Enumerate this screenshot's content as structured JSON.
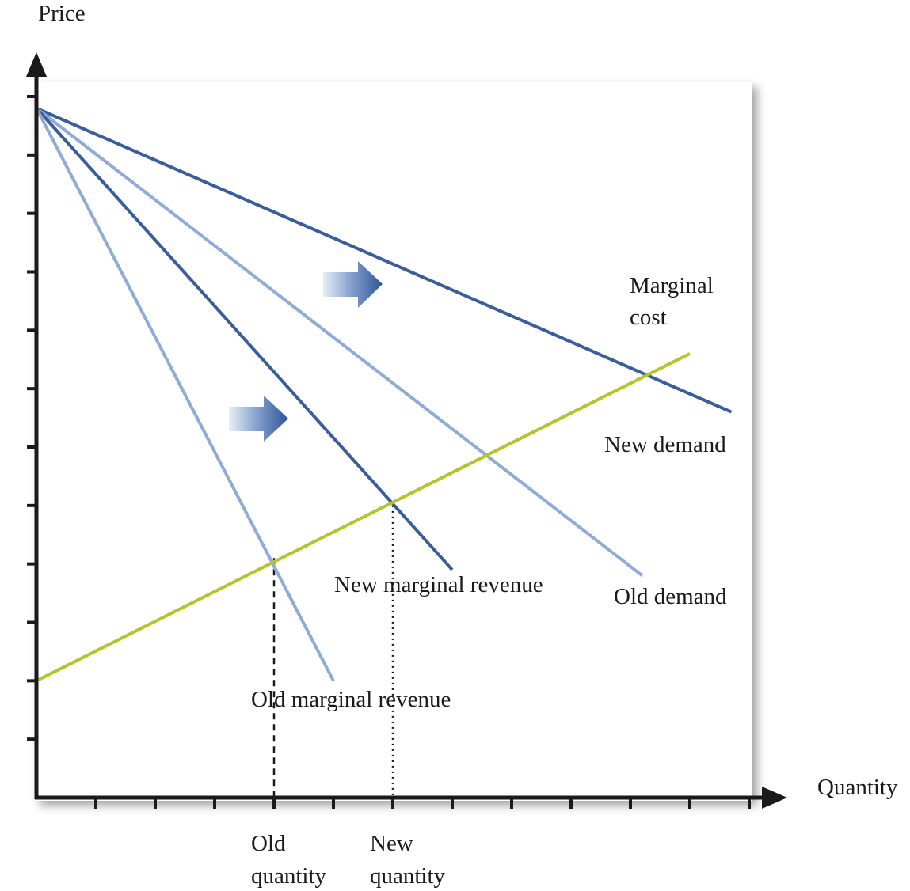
{
  "chart_data": {
    "type": "line",
    "title": "",
    "xlabel": "Quantity",
    "ylabel": "Price",
    "xlim": [
      0,
      12
    ],
    "ylim": [
      0,
      12
    ],
    "grid": false,
    "legend": "none",
    "series": [
      {
        "name": "New demand",
        "color": "#3a5e9b",
        "x": [
          0,
          11.7
        ],
        "y": [
          11.8,
          6.6
        ]
      },
      {
        "name": "Old demand",
        "color": "#8fabd6",
        "x": [
          0,
          10.2
        ],
        "y": [
          11.8,
          3.8
        ]
      },
      {
        "name": "New marginal revenue",
        "color": "#3a5e9b",
        "x": [
          0,
          7.0
        ],
        "y": [
          11.8,
          3.9
        ]
      },
      {
        "name": "Old marginal revenue",
        "color": "#8fabd6",
        "x": [
          0,
          5.0
        ],
        "y": [
          11.8,
          2.0
        ]
      },
      {
        "name": "Marginal cost",
        "color": "#b5c42a",
        "x": [
          0,
          11.0
        ],
        "y": [
          2.0,
          7.6
        ]
      }
    ],
    "labels": {
      "marginal_cost": [
        "Marginal",
        "cost"
      ],
      "new_demand": "New demand",
      "old_demand": "Old demand",
      "new_marginal_revenue": "New marginal revenue",
      "old_marginal_revenue": "Old marginal revenue",
      "old_quantity": [
        "Old",
        "quantity"
      ],
      "new_quantity": [
        "New",
        "quantity"
      ]
    },
    "markers": [
      {
        "name": "Old quantity",
        "x": 4.0,
        "y": 4.1,
        "style": "dashed"
      },
      {
        "name": "New quantity",
        "x": 6.0,
        "y": 5.0,
        "style": "dotted"
      }
    ],
    "shift_arrows": 2,
    "colors": {
      "dark_blue": "#3a5e9b",
      "light_blue": "#8fabd6",
      "cost_green": "#b5c42a",
      "axis": "#1a1a1a"
    }
  }
}
